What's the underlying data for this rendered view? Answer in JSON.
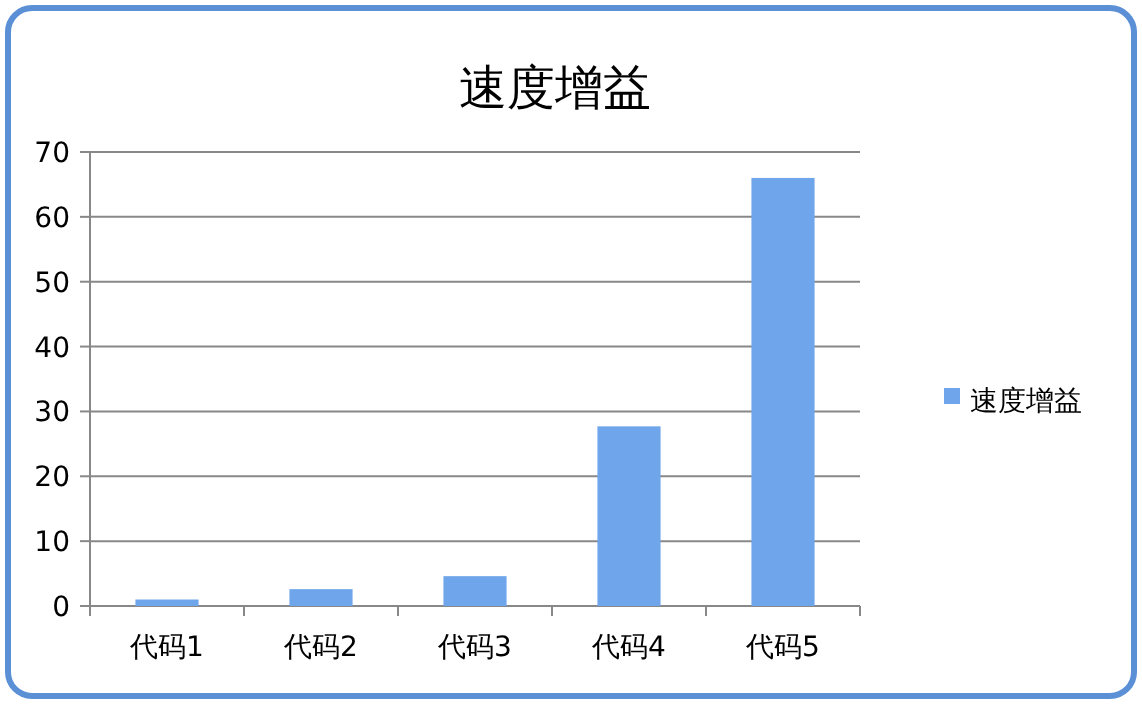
{
  "chart_data": {
    "type": "bar",
    "title": "速度增益",
    "categories": [
      "代码1",
      "代码2",
      "代码3",
      "代码4",
      "代码5"
    ],
    "series": [
      {
        "name": "速度增益",
        "color": "#6fa5ea",
        "values": [
          1.0,
          2.6,
          4.6,
          27.7,
          66.0
        ]
      }
    ],
    "ylim": [
      0,
      70
    ],
    "yticks": [
      0,
      10,
      20,
      30,
      40,
      50,
      60,
      70
    ],
    "grid": "y",
    "legend": "right"
  }
}
